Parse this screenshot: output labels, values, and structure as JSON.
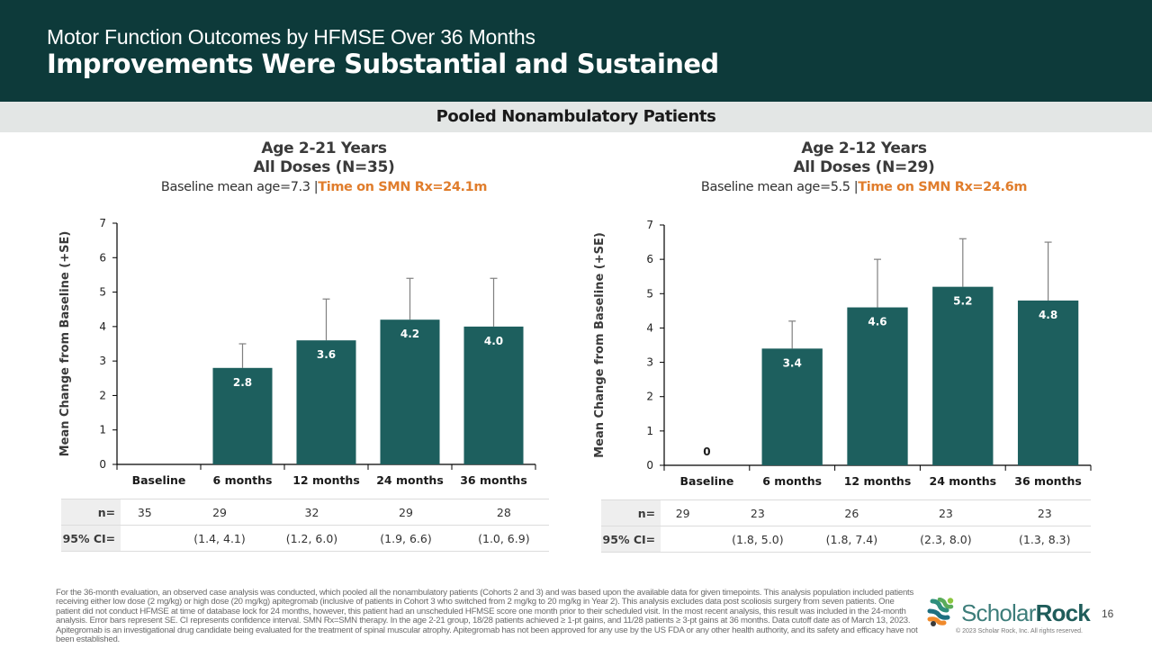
{
  "header": {
    "subtitle": "Motor Function Outcomes by HFMSE Over 36 Months",
    "title": "Improvements Were Substantial and Sustained"
  },
  "band": {
    "label": "Pooled Nonambulatory Patients"
  },
  "panels": [
    {
      "heading1": "Age 2-21 Years",
      "heading2": "All Doses (N=35)",
      "baseline_text": "Baseline mean age=7.3 |",
      "time_text": "Time on SMN Rx=24.1m",
      "table": {
        "n_label": "n=",
        "n_values": [
          "35",
          "29",
          "32",
          "29",
          "28"
        ],
        "ci_label": "95% CI=",
        "ci_values": [
          "",
          "(1.4, 4.1)",
          "(1.2, 6.0)",
          "(1.9, 6.6)",
          "(1.0, 6.9)"
        ]
      }
    },
    {
      "heading1": "Age 2-12 Years",
      "heading2": "All Doses (N=29)",
      "baseline_text": "Baseline mean age=5.5 |",
      "time_text": "Time on SMN Rx=24.6m",
      "table": {
        "n_label": "n=",
        "n_values": [
          "29",
          "23",
          "26",
          "23",
          "23"
        ],
        "ci_label": "95% CI=",
        "ci_values": [
          "",
          "(1.8, 5.0)",
          "(1.8, 7.4)",
          "(2.3, 8.0)",
          "(1.3, 8.3)"
        ]
      }
    }
  ],
  "chart_data": [
    {
      "type": "bar",
      "title": "Age 2-21 Years, All Doses (N=35)",
      "xlabel": "",
      "ylabel": "Mean Change from Baseline (+SE)",
      "categories": [
        "Baseline",
        "6 months",
        "12 months",
        "24 months",
        "36 months"
      ],
      "values": [
        null,
        2.8,
        3.6,
        4.2,
        4.0
      ],
      "value_labels": [
        "",
        "2.8",
        "3.6",
        "4.2",
        "4.0"
      ],
      "error_upper": [
        null,
        3.5,
        4.8,
        5.4,
        5.4
      ],
      "ylim": [
        0,
        7
      ],
      "yticks": [
        0,
        1,
        2,
        3,
        4,
        5,
        6,
        7
      ],
      "grid": false,
      "bar_color": "#1d5f5e",
      "error_color": "#808080"
    },
    {
      "type": "bar",
      "title": "Age 2-12 Years, All Doses (N=29)",
      "xlabel": "",
      "ylabel": "Mean Change from Baseline (+SE)",
      "categories": [
        "Baseline",
        "6 months",
        "12 months",
        "24 months",
        "36 months"
      ],
      "values": [
        0,
        3.4,
        4.6,
        5.2,
        4.8
      ],
      "value_labels": [
        "0",
        "3.4",
        "4.6",
        "5.2",
        "4.8"
      ],
      "error_upper": [
        null,
        4.2,
        6.0,
        6.6,
        6.5
      ],
      "ylim": [
        0,
        7
      ],
      "yticks": [
        0,
        1,
        2,
        3,
        4,
        5,
        6,
        7
      ],
      "grid": false,
      "bar_color": "#1d5f5e",
      "error_color": "#808080"
    }
  ],
  "footnote": "For the 36-month evaluation, an observed case analysis was conducted, which pooled all the nonambulatory patients (Cohorts 2 and 3) and was based upon the available data for given timepoints. This analysis population included patients receiving either low dose (2 mg/kg) or high dose (20 mg/kg) apitegromab (inclusive of patients in Cohort 3 who switched from 2 mg/kg to 20 mg/kg in Year 2). This analysis excludes data post scoliosis surgery from seven patients. One patient did not conduct HFMSE at time of database lock for 24 months, however, this patient had an unscheduled HFMSE score one month prior to their scheduled visit. In the most recent analysis, this result was included in the 24-month analysis. Error bars represent SE. CI represents confidence interval. SMN Rx=SMN therapy. In the age 2-21 group, 18/28 patients achieved ≥ 1-pt gains, and 11/28 patients ≥ 3-pt gains at 36 months. Data cutoff date as of March 13, 2023. Apitegromab is an investigational drug candidate being evaluated for the treatment of spinal muscular atrophy. Apitegromab has not been approved for any use by the US FDA or any other health authority, and its safety and efficacy have not been established.",
  "logo": {
    "word_light": "Scholar",
    "word_bold": "Rock",
    "icon": "scholar-rock-logo-icon"
  },
  "copyright": "© 2023 Scholar Rock, Inc. All rights reserved.",
  "page_number": "16"
}
